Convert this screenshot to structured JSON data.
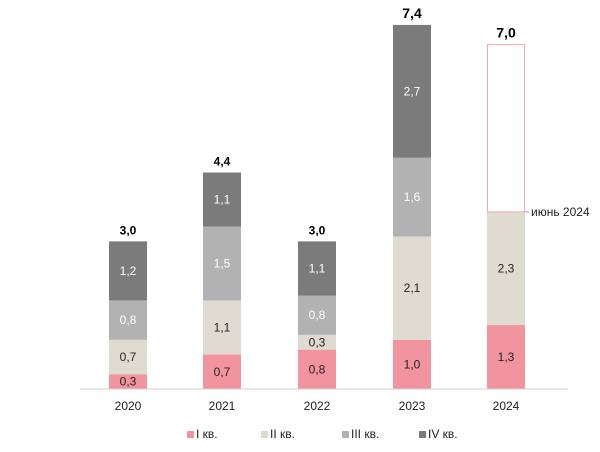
{
  "chart_data": {
    "type": "bar",
    "stacked": true,
    "categories": [
      "2020",
      "2021",
      "2022",
      "2023",
      "2024"
    ],
    "series": [
      {
        "name": "I кв.",
        "color": "#f2949d",
        "values": [
          "0,3",
          "0,7",
          "0,8",
          "1,0",
          "1,3"
        ]
      },
      {
        "name": "II кв.",
        "color": "#e0dbd0",
        "values": [
          "0,7",
          "1,1",
          "0,3",
          "2,1",
          "2,3"
        ]
      },
      {
        "name": "III кв.",
        "color": "#b2b2b2",
        "values": [
          "0,8",
          "1,5",
          "0,8",
          "1,6",
          null
        ]
      },
      {
        "name": "IV кв.",
        "color": "#7b7b7b",
        "values": [
          "1,2",
          "1,1",
          "1,1",
          "2,7",
          null
        ]
      }
    ],
    "totals": [
      "3,0",
      "4,4",
      "3,0",
      "7,4",
      "7,0"
    ],
    "target_2024": {
      "total": "7,0",
      "annotation": "июнь 2024"
    },
    "ylim": [
      0,
      7.4
    ],
    "grid": false,
    "legend_position": "bottom",
    "title": "",
    "xlabel": "",
    "ylabel": ""
  }
}
